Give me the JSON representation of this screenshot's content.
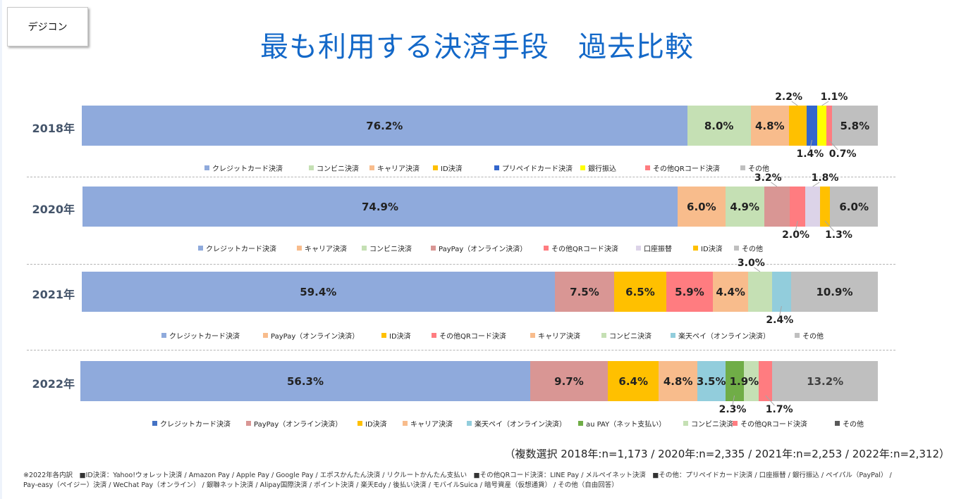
{
  "brand_label": "デジコン",
  "title": "最も利用する決済手段　過去比較",
  "sample_note": "（複数選択 2018年:n=1,173 / 2020年:n=2,335 / 2021年:n=2,253 / 2022年:n=2,312）",
  "footnote_lines": [
    "※2022年各内訳　■ID決済：Yahoo!ウォレット決済 / Amazon Pay / Apple Pay / Google Pay / エポスかんたん決済 / リクルートかんたん支払い　■その他QRコード決済：LINE Pay / メルペイネット決済　■その他：プリペイドカード決済 / 口座振替 / 銀行振込 / ペイパル（PayPal） /",
    "Pay-easy（ペイジー）決済 / WeChat Pay（オンライン） / 銀聯ネット決済 / Alipay国際決済 / ポイント決済 / 楽天Edy / 後払い決済 / モバイルSuica / 暗号資産（仮想通貨） / その他（自由回答）"
  ],
  "chart_data": {
    "type": "bar",
    "orientation": "horizontal-stacked-100",
    "title": "最も利用する決済手段　過去比較",
    "xlabel": "",
    "ylabel": "",
    "xlim": [
      0,
      100
    ],
    "unit": "%",
    "grid": false,
    "legend_placement": "below-each-bar",
    "rows": [
      {
        "label": "2018年",
        "n": "1,173",
        "segments": [
          {
            "name": "クレジットカード決済",
            "value": 76.2,
            "color": "#8faadc",
            "label_pos": "inside"
          },
          {
            "name": "コンビニ決済",
            "value": 8.0,
            "color": "#c5e0b4",
            "label_pos": "inside"
          },
          {
            "name": "キャリア決済",
            "value": 4.8,
            "color": "#f8bc8c",
            "label_pos": "inside"
          },
          {
            "name": "ID決済",
            "value": 2.2,
            "color": "#ffc000",
            "label_pos": "above"
          },
          {
            "name": "プリペイドカード決済",
            "value": 1.4,
            "color": "#3366cc",
            "label_pos": "below"
          },
          {
            "name": "銀行振込",
            "value": 1.1,
            "color": "#ffff00",
            "label_pos": "above"
          },
          {
            "name": "その他QRコード決済",
            "value": 0.7,
            "color": "#ff7c80",
            "label_pos": "below"
          },
          {
            "name": "その他",
            "value": 5.8,
            "color": "#bfbfbf",
            "label_pos": "inside"
          }
        ],
        "legend": [
          {
            "name": "クレジットカード決済",
            "color": "#8faadc"
          },
          {
            "name": "コンビニ決済",
            "color": "#c5e0b4"
          },
          {
            "name": "キャリア決済",
            "color": "#f8bc8c"
          },
          {
            "name": "ID決済",
            "color": "#ffc000"
          },
          {
            "name": "プリペイドカード決済",
            "color": "#3366cc"
          },
          {
            "name": "銀行振込",
            "color": "#ffff00"
          },
          {
            "name": "その他QRコード決済",
            "color": "#ff7c80"
          },
          {
            "name": "その他",
            "color": "#bfbfbf"
          }
        ]
      },
      {
        "label": "2020年",
        "n": "2,335",
        "segments": [
          {
            "name": "クレジットカード決済",
            "value": 74.9,
            "color": "#8faadc",
            "label_pos": "inside"
          },
          {
            "name": "キャリア決済",
            "value": 6.0,
            "color": "#f8bc8c",
            "label_pos": "inside"
          },
          {
            "name": "コンビニ決済",
            "value": 4.9,
            "color": "#c5e0b4",
            "label_pos": "inside"
          },
          {
            "name": "PayPay（オンライン決済）",
            "value": 3.2,
            "color": "#d99694",
            "label_pos": "above"
          },
          {
            "name": "その他QRコード決済",
            "value": 2.0,
            "color": "#ff7c80",
            "label_pos": "below"
          },
          {
            "name": "口座振替",
            "value": 1.8,
            "color": "#dcd3e8",
            "label_pos": "above"
          },
          {
            "name": "ID決済",
            "value": 1.3,
            "color": "#ffc000",
            "label_pos": "below"
          },
          {
            "name": "その他",
            "value": 6.0,
            "color": "#bfbfbf",
            "label_pos": "inside"
          }
        ],
        "legend": [
          {
            "name": "クレジットカード決済",
            "color": "#8faadc"
          },
          {
            "name": "キャリア決済",
            "color": "#f8bc8c"
          },
          {
            "name": "コンビニ決済",
            "color": "#c5e0b4"
          },
          {
            "name": "PayPay（オンライン決済）",
            "color": "#d99694"
          },
          {
            "name": "その他QRコード決済",
            "color": "#ff7c80"
          },
          {
            "name": "口座振替",
            "color": "#dcd3e8"
          },
          {
            "name": "ID決済",
            "color": "#ffc000"
          },
          {
            "name": "その他",
            "color": "#bfbfbf"
          }
        ]
      },
      {
        "label": "2021年",
        "n": "2,253",
        "segments": [
          {
            "name": "クレジットカード決済",
            "value": 59.4,
            "color": "#8faadc",
            "label_pos": "inside"
          },
          {
            "name": "PayPay（オンライン決済）",
            "value": 7.5,
            "color": "#d99694",
            "label_pos": "inside"
          },
          {
            "name": "ID決済",
            "value": 6.5,
            "color": "#ffc000",
            "label_pos": "inside"
          },
          {
            "name": "その他QRコード決済",
            "value": 5.9,
            "color": "#ff7c80",
            "label_pos": "inside"
          },
          {
            "name": "キャリア決済",
            "value": 4.4,
            "color": "#f8bc8c",
            "label_pos": "inside"
          },
          {
            "name": "コンビニ決済",
            "value": 3.0,
            "color": "#c5e0b4",
            "label_pos": "above"
          },
          {
            "name": "楽天ペイ（オンライン決済）",
            "value": 2.4,
            "color": "#92cddc",
            "label_pos": "below"
          },
          {
            "name": "その他",
            "value": 10.9,
            "color": "#bfbfbf",
            "label_pos": "inside"
          }
        ],
        "legend": [
          {
            "name": "クレジットカード決済",
            "color": "#8faadc"
          },
          {
            "name": "PayPay（オンライン決済）",
            "color": "#f8bc8c"
          },
          {
            "name": "ID決済",
            "color": "#ffc000"
          },
          {
            "name": "その他QRコード決済",
            "color": "#ff7c80"
          },
          {
            "name": "キャリア決済",
            "color": "#f8bc8c"
          },
          {
            "name": "コンビニ決済",
            "color": "#c5e0b4"
          },
          {
            "name": "楽天ペイ（オンライン決済）",
            "color": "#92cddc"
          },
          {
            "name": "その他",
            "color": "#bfbfbf"
          }
        ]
      },
      {
        "label": "2022年",
        "n": "2,312",
        "segments": [
          {
            "name": "クレジットカード決済",
            "value": 56.3,
            "color": "#8faadc",
            "label_pos": "inside"
          },
          {
            "name": "PayPay（オンライン決済）",
            "value": 9.7,
            "color": "#d99694",
            "label_pos": "inside"
          },
          {
            "name": "ID決済",
            "value": 6.4,
            "color": "#ffc000",
            "label_pos": "inside"
          },
          {
            "name": "キャリア決済",
            "value": 4.8,
            "color": "#f8bc8c",
            "label_pos": "inside"
          },
          {
            "name": "楽天ペイ（オンライン決済）",
            "value": 3.5,
            "color": "#92cddc",
            "label_pos": "inside"
          },
          {
            "name": "au PAY（ネット支払い）",
            "value": 2.3,
            "color": "#70ad47",
            "label_pos": "below"
          },
          {
            "name": "コンビニ決済",
            "value": 1.9,
            "color": "#c5e0b4",
            "label_pos": "inside-shifted"
          },
          {
            "name": "その他QRコード決済",
            "value": 1.7,
            "color": "#ff7c80",
            "label_pos": "below"
          },
          {
            "name": "その他",
            "value": 13.2,
            "color": "#bfbfbf",
            "label_pos": "inside",
            "label_color": "#404040"
          }
        ],
        "legend": [
          {
            "name": "クレジットカード決済",
            "color": "#4472c4"
          },
          {
            "name": "PayPay（オンライン決済）",
            "color": "#d99694"
          },
          {
            "name": "ID決済",
            "color": "#ffc000"
          },
          {
            "name": "キャリア決済",
            "color": "#f8bc8c"
          },
          {
            "name": "楽天ペイ（オンライン決済）",
            "color": "#92cddc"
          },
          {
            "name": "au PAY（ネット支払い）",
            "color": "#70ad47"
          },
          {
            "name": "コンビニ決済",
            "color": "#c5e0b4"
          },
          {
            "name": "その他QRコード決済",
            "color": "#ff7c80"
          },
          {
            "name": "その他",
            "color": "#595959"
          }
        ]
      }
    ]
  }
}
